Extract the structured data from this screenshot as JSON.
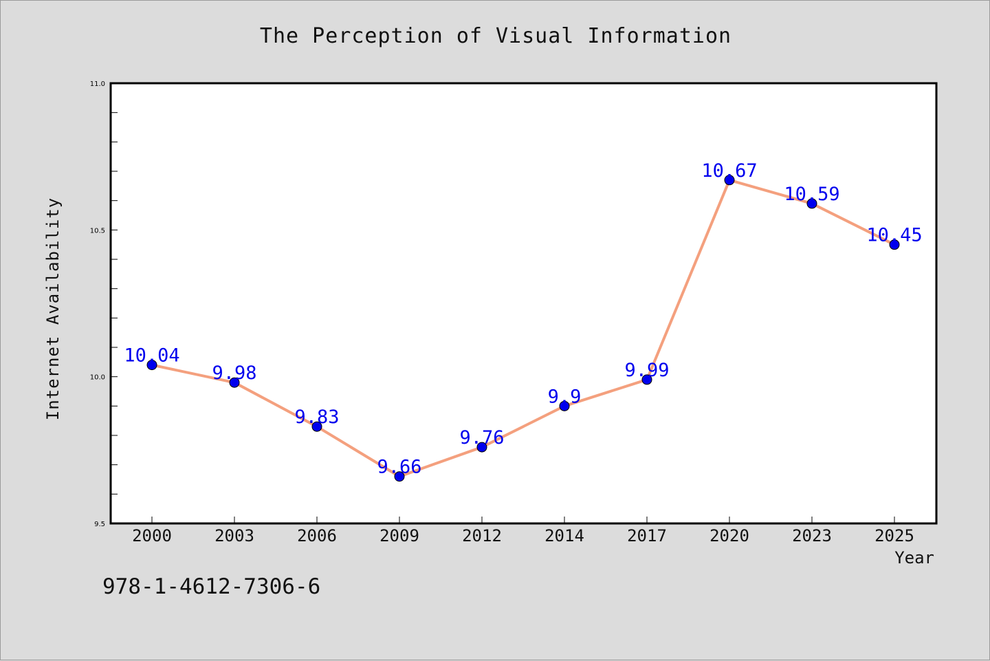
{
  "chart_data": {
    "type": "line",
    "title": "The Perception of Visual Information",
    "xlabel": "Year",
    "ylabel": "Internet Availability",
    "categories": [
      "2000",
      "2003",
      "2006",
      "2009",
      "2012",
      "2014",
      "2017",
      "2020",
      "2023",
      "2025"
    ],
    "series": [
      {
        "values": [
          10.04,
          9.98,
          9.83,
          9.66,
          9.76,
          9.9,
          9.99,
          10.67,
          10.59,
          10.45
        ],
        "labels": [
          "10.04",
          "9.98",
          "9.83",
          "9.66",
          "9.76",
          "9.9",
          "9.99",
          "10.67",
          "10.59",
          "10.45"
        ],
        "line_color": "#f4a07e",
        "marker_color": "#0000ee",
        "label_color": "#0000ee"
      }
    ],
    "ylim": [
      9.5,
      11.0
    ],
    "y_ticks": [
      "9.5",
      "10.0",
      "10.5",
      "11.0"
    ],
    "y_tick_values": [
      9.5,
      10.0,
      10.5,
      11.0
    ],
    "y_minor_step": 0.1,
    "grid": false,
    "legend": "none"
  },
  "footer": {
    "isbn": "978-1-4612-7306-6"
  },
  "colors": {
    "background": "#dcdcdc",
    "plot_background": "#ffffff",
    "axis": "#000000"
  }
}
